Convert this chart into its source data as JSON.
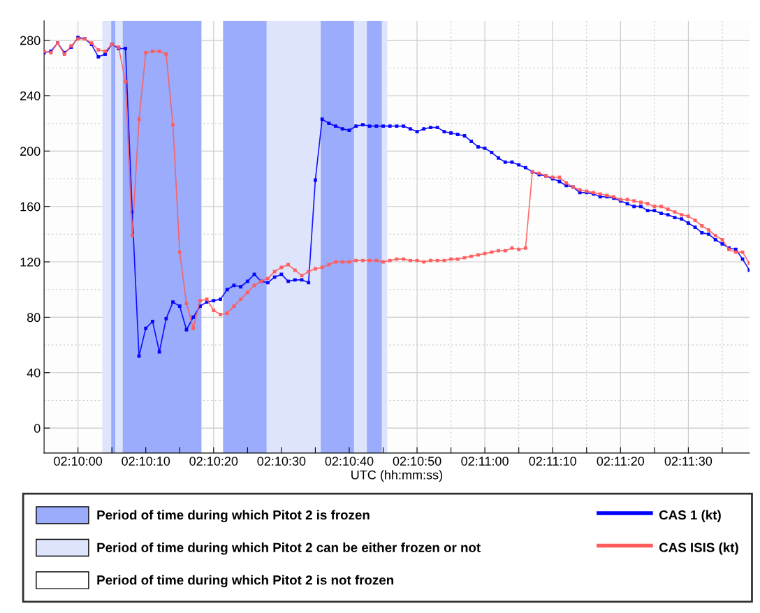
{
  "chart_data": {
    "type": "line",
    "xlabel": "UTC (hh:mm:ss)",
    "x": [
      2.165278,
      2.165556,
      2.165833,
      2.166111,
      2.166389,
      2.166667,
      2.166944,
      2.167222,
      2.1675,
      2.167778,
      2.168056,
      2.168333,
      2.168611,
      2.168889,
      2.169167,
      2.169444,
      2.169722,
      2.17,
      2.170278,
      2.170556,
      2.170833,
      2.171111,
      2.171389,
      2.171667,
      2.171944,
      2.172222,
      2.1725,
      2.172778,
      2.173056,
      2.173333,
      2.173611,
      2.173889,
      2.174167,
      2.174444,
      2.174722,
      2.175,
      2.175278,
      2.175556,
      2.175833,
      2.176111,
      2.176389,
      2.176667,
      2.176944,
      2.177222,
      2.1775,
      2.177778,
      2.178056,
      2.178333,
      2.178611,
      2.178889,
      2.179167,
      2.179444,
      2.179722,
      2.18,
      2.180278,
      2.180556,
      2.180833,
      2.181111,
      2.181389,
      2.181667,
      2.181944,
      2.182222,
      2.1825,
      2.182778,
      2.183056,
      2.183333,
      2.183611,
      2.183889,
      2.184167,
      2.184444,
      2.184722,
      2.185,
      2.185278,
      2.185556,
      2.185833,
      2.186111,
      2.186389,
      2.186667,
      2.186944,
      2.187222,
      2.1875,
      2.187778,
      2.188056,
      2.188333,
      2.188611,
      2.188889,
      2.189167,
      2.189444,
      2.189722,
      2.19,
      2.190278,
      2.190556,
      2.190833,
      2.191111,
      2.191389,
      2.191667,
      2.191944,
      2.192222,
      2.1925,
      2.192778,
      2.193056,
      2.193333,
      2.193611,
      2.193889,
      2.194167
    ],
    "series": [
      {
        "name": "CAS 1 (kt)",
        "color": "#0000ff",
        "values": [
          271,
          272,
          278,
          271,
          275,
          282,
          281,
          277,
          268,
          270,
          277,
          274,
          274,
          156,
          52,
          72,
          77,
          55,
          79,
          91,
          88,
          71,
          80,
          88,
          91,
          92,
          93,
          100,
          103,
          102,
          106,
          111,
          106,
          105,
          109,
          111,
          106,
          107,
          107,
          105,
          179,
          223,
          220,
          218,
          216,
          215,
          218,
          219,
          218,
          218,
          218,
          218,
          218,
          218,
          216,
          214,
          216,
          217,
          217,
          214,
          213,
          212,
          211,
          207,
          203,
          202,
          199,
          195,
          192,
          192,
          190,
          188,
          185,
          183,
          182,
          180,
          178,
          175,
          174,
          170,
          170,
          169,
          167,
          167,
          166,
          164,
          162,
          160,
          160,
          157,
          157,
          155,
          154,
          152,
          151,
          148,
          145,
          141,
          140,
          136,
          133,
          130,
          129,
          122,
          114
        ]
      },
      {
        "name": "CAS ISIS (kt)",
        "color": "#ff5c5c",
        "values": [
          272,
          271,
          278,
          270,
          276,
          281,
          281,
          278,
          273,
          272,
          277,
          275,
          250,
          139,
          223,
          271,
          272,
          272,
          270,
          219,
          127,
          90,
          72,
          92,
          93,
          85,
          82,
          83,
          88,
          93,
          98,
          103,
          106,
          108,
          113,
          116,
          118,
          114,
          110,
          113,
          115,
          116,
          118,
          120,
          120,
          120,
          121,
          121,
          121,
          121,
          120,
          121,
          122,
          122,
          121,
          121,
          120,
          121,
          121,
          121,
          122,
          122,
          123,
          124,
          125,
          126,
          127,
          128,
          128,
          130,
          129,
          130,
          185,
          184,
          182,
          181,
          181,
          177,
          174,
          172,
          171,
          170,
          169,
          168,
          167,
          165,
          165,
          164,
          163,
          162,
          160,
          160,
          158,
          156,
          154,
          153,
          150,
          146,
          143,
          139,
          136,
          129,
          127,
          127,
          119
        ]
      }
    ],
    "xlim": [
      2.165278,
      2.194167
    ],
    "xticks": [
      {
        "value": 2.166667,
        "label": "02:10:00"
      },
      {
        "value": 2.168056,
        "label": null
      },
      {
        "value": 2.169444,
        "label": "02:10:10"
      },
      {
        "value": 2.170833,
        "label": null
      },
      {
        "value": 2.172222,
        "label": "02:10:20"
      },
      {
        "value": 2.173611,
        "label": null
      },
      {
        "value": 2.175,
        "label": "02:10:30"
      },
      {
        "value": 2.176389,
        "label": null
      },
      {
        "value": 2.177778,
        "label": "02:10:40"
      },
      {
        "value": 2.179167,
        "label": null
      },
      {
        "value": 2.180556,
        "label": "02:10:50"
      },
      {
        "value": 2.181944,
        "label": null
      },
      {
        "value": 2.183333,
        "label": "02:11:00"
      },
      {
        "value": 2.184722,
        "label": null
      },
      {
        "value": 2.186111,
        "label": "02:11:10"
      },
      {
        "value": 2.1875,
        "label": null
      },
      {
        "value": 2.188889,
        "label": "02:11:20"
      },
      {
        "value": 2.190278,
        "label": null
      },
      {
        "value": 2.191667,
        "label": "02:11:30"
      },
      {
        "value": 2.193056,
        "label": null
      }
    ],
    "ylim": [
      -18,
      294
    ],
    "yticks": [
      0,
      {
        "value": 20,
        "label": null
      },
      40,
      {
        "value": 60,
        "label": null
      },
      80,
      {
        "value": 100,
        "label": null
      },
      120,
      {
        "value": 140,
        "label": null
      },
      160,
      {
        "value": 180,
        "label": null
      },
      200,
      {
        "value": 220,
        "label": null
      },
      240,
      {
        "value": 260,
        "label": null
      },
      280
    ],
    "bands": [
      {
        "axis": "x",
        "from": 2.167667,
        "to": 2.171722,
        "label": "Period of time during which Pitot 2 can be either frozen or not",
        "color": "#dde4fb"
      },
      {
        "axis": "x",
        "from": 2.172611,
        "to": 2.179333,
        "color": "#dde4fb"
      },
      {
        "axis": "x",
        "from": 2.168028,
        "to": 2.168194,
        "label": "Period of time during which Pitot 2 is frozen",
        "color": "#9aacfb"
      },
      {
        "axis": "x",
        "from": 2.1685,
        "to": 2.171722,
        "color": "#9aacfb"
      },
      {
        "axis": "x",
        "from": 2.172611,
        "to": 2.174389,
        "color": "#9aacfb"
      },
      {
        "axis": "x",
        "from": 2.176611,
        "to": 2.177972,
        "color": "#9aacfb"
      },
      {
        "axis": "x",
        "from": 2.1785,
        "to": 2.179111,
        "color": "#9aacfb"
      }
    ],
    "annotations": [
      "Period of time during which Pitot 2 is not frozen"
    ],
    "grid": true,
    "legend": "bottom",
    "marker": "square",
    "line_style": "solid"
  }
}
